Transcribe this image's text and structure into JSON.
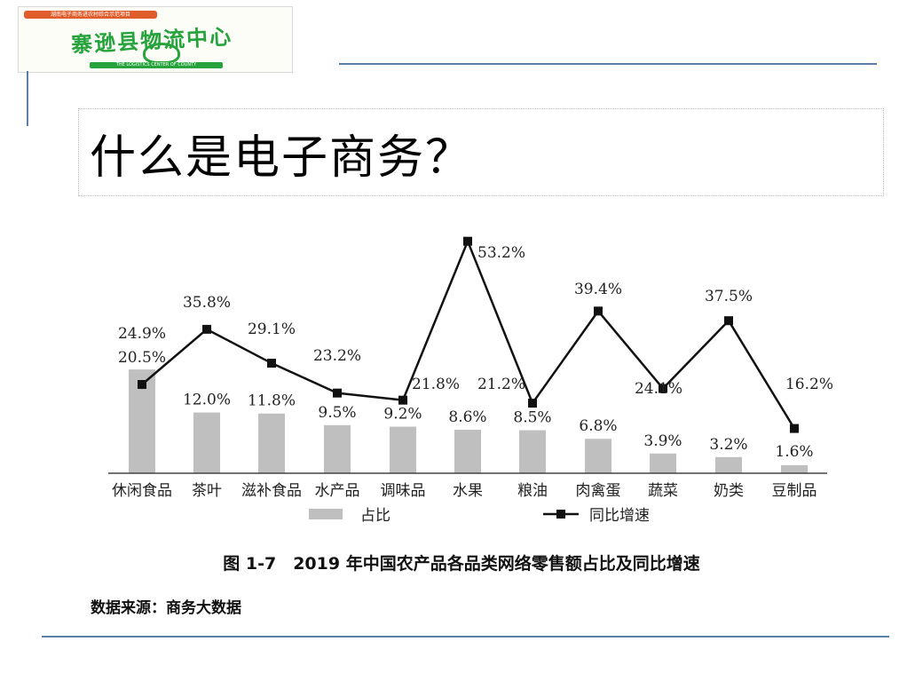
{
  "logo": {
    "top_text": "湖南电子商务进农村综合示范项目",
    "main_text": "寨逊县物流中心",
    "sub_text": "THE LOGISTICS CENTER OF COUNTY"
  },
  "slide_title": "什么是电子商务？",
  "figure": {
    "caption": "图 1-7　2019 年中国农产品各品类网络零售额占比及同比增速",
    "source": "数据来源：商务大数据"
  },
  "chart_data": {
    "type": "bar",
    "categories": [
      "休闲食品",
      "茶叶",
      "滋补食品",
      "水产品",
      "调味品",
      "水果",
      "粮油",
      "肉禽蛋",
      "蔬菜",
      "奶类",
      "豆制品"
    ],
    "series": [
      {
        "name": "占比",
        "kind": "bar",
        "values": [
          20.5,
          12.0,
          11.8,
          9.5,
          9.2,
          8.6,
          8.5,
          6.8,
          3.9,
          3.2,
          1.6
        ],
        "labels": [
          "20.5%",
          "12.0%",
          "11.8%",
          "9.5%",
          "9.2%",
          "8.6%",
          "8.5%",
          "6.8%",
          "3.9%",
          "3.2%",
          "1.6%"
        ]
      },
      {
        "name": "同比增速",
        "kind": "line",
        "values": [
          24.9,
          35.8,
          29.1,
          23.2,
          21.8,
          53.2,
          21.2,
          39.4,
          24.1,
          37.5,
          16.2
        ],
        "labels": [
          "24.9%",
          "35.8%",
          "29.1%",
          "23.2%",
          "21.8%",
          "53.2%",
          "21.2%",
          "39.4%",
          "24.1%",
          "37.5%",
          "16.2%"
        ]
      }
    ],
    "bar_color": "#bfbfbf",
    "line_color": "#111111",
    "legend_position": "bottom",
    "grid": false
  }
}
